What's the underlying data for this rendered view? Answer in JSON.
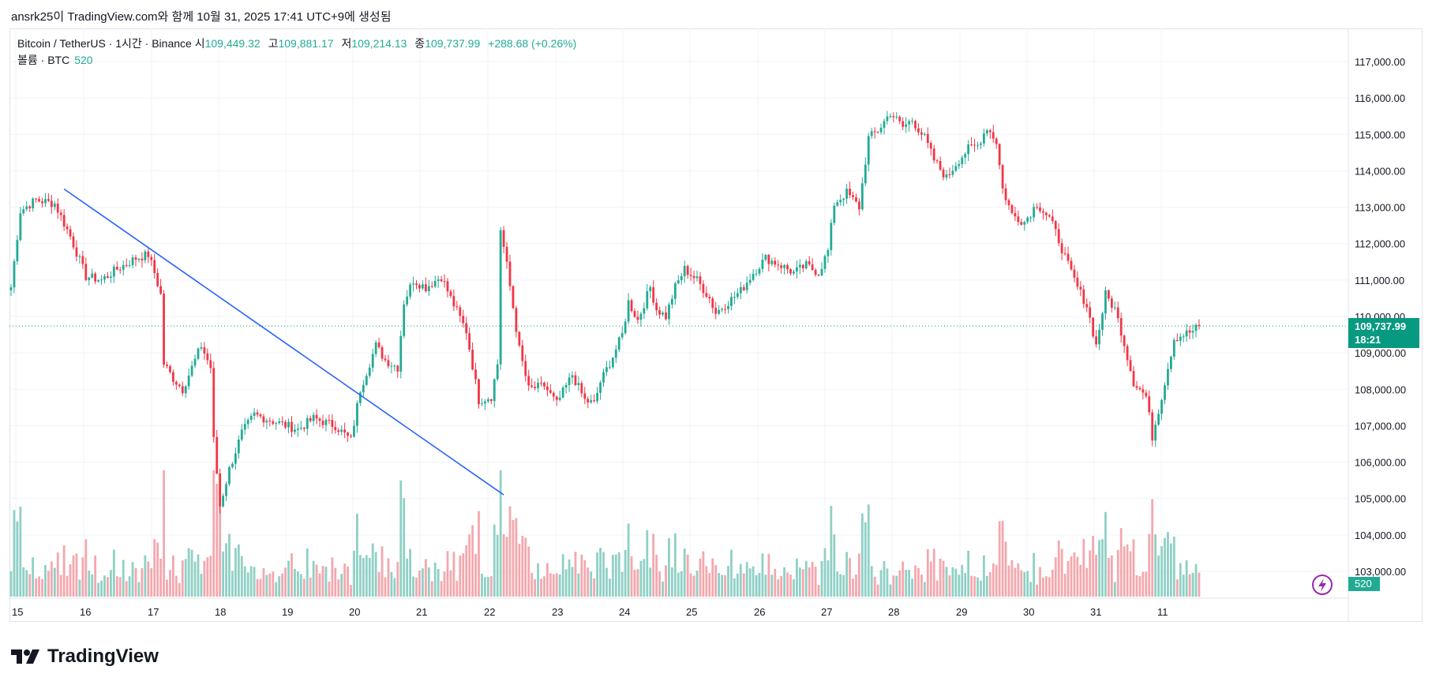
{
  "header": {
    "caption": "ansrk25이 TradingView.com와 함께 10월 31, 2025 17:41 UTC+9에 생성됨"
  },
  "legend": {
    "symbol": "Bitcoin / TetherUS · 1시간 · Binance",
    "open_label": "시",
    "open": "109,449.32",
    "high_label": "고",
    "high": "109,881.17",
    "low_label": "저",
    "low": "109,214.13",
    "close_label": "종",
    "close": "109,737.99",
    "change": "+288.68 (+0.26%)",
    "volume_label": "볼륨 · BTC",
    "volume": "520"
  },
  "price_badge": {
    "price": "109,737.99",
    "countdown": "18:21"
  },
  "volume_badge": "520",
  "footer": {
    "logo_text": "TradingView"
  },
  "colors": {
    "up": "#22ab94",
    "down": "#f23645",
    "up_volume": "#8fd0c5",
    "down_volume": "#f3a8ae",
    "trendline": "#2962ff",
    "badge": "#089981"
  },
  "chart_data": {
    "type": "candlestick",
    "symbol": "BTCUSDT",
    "interval": "1h",
    "x_tick_labels": [
      "15",
      "16",
      "17",
      "18",
      "19",
      "20",
      "21",
      "22",
      "23",
      "24",
      "25",
      "26",
      "27",
      "28",
      "29",
      "30",
      "31",
      "11"
    ],
    "y_tick_labels": [
      "103,000.00",
      "104,000.00",
      "105,000.00",
      "106,000.00",
      "107,000.00",
      "108,000.00",
      "109,000.00",
      "110,000.00",
      "111,000.00",
      "112,000.00",
      "113,000.00",
      "114,000.00",
      "115,000.00",
      "116,000.00",
      "117,000.00"
    ],
    "y_ticks": [
      103000,
      104000,
      105000,
      106000,
      107000,
      108000,
      109000,
      110000,
      111000,
      112000,
      113000,
      114000,
      115000,
      116000,
      117000
    ],
    "ylim": [
      102300,
      117800
    ],
    "last_price": 109737.99,
    "price_path_anchors": [
      [
        0,
        110800
      ],
      [
        3,
        112900
      ],
      [
        8,
        113200
      ],
      [
        14,
        113100
      ],
      [
        19,
        112200
      ],
      [
        24,
        111100
      ],
      [
        29,
        111000
      ],
      [
        34,
        111300
      ],
      [
        40,
        111600
      ],
      [
        44,
        111700
      ],
      [
        46,
        111200
      ],
      [
        48,
        110600
      ],
      [
        49,
        108700
      ],
      [
        52,
        108300
      ],
      [
        55,
        108000
      ],
      [
        58,
        108600
      ],
      [
        61,
        109200
      ],
      [
        64,
        108600
      ],
      [
        65,
        106600
      ],
      [
        67,
        104800
      ],
      [
        70,
        105800
      ],
      [
        74,
        106800
      ],
      [
        78,
        107300
      ],
      [
        85,
        107100
      ],
      [
        92,
        106900
      ],
      [
        97,
        107200
      ],
      [
        104,
        107000
      ],
      [
        109,
        106600
      ],
      [
        112,
        108000
      ],
      [
        117,
        109200
      ],
      [
        120,
        108800
      ],
      [
        124,
        108600
      ],
      [
        126,
        110400
      ],
      [
        129,
        111000
      ],
      [
        133,
        110800
      ],
      [
        138,
        111100
      ],
      [
        141,
        110500
      ],
      [
        146,
        109600
      ],
      [
        150,
        107700
      ],
      [
        154,
        107800
      ],
      [
        156,
        108700
      ],
      [
        157,
        112400
      ],
      [
        159,
        111400
      ],
      [
        163,
        109100
      ],
      [
        166,
        108000
      ],
      [
        171,
        108100
      ],
      [
        175,
        107600
      ],
      [
        180,
        108400
      ],
      [
        184,
        107700
      ],
      [
        187,
        107600
      ],
      [
        189,
        108200
      ],
      [
        193,
        108900
      ],
      [
        196,
        109500
      ],
      [
        198,
        110400
      ],
      [
        201,
        109900
      ],
      [
        205,
        110800
      ],
      [
        207,
        110200
      ],
      [
        210,
        110000
      ],
      [
        213,
        110800
      ],
      [
        216,
        111300
      ],
      [
        220,
        111000
      ],
      [
        224,
        110500
      ],
      [
        226,
        110100
      ],
      [
        230,
        110400
      ],
      [
        234,
        110700
      ],
      [
        238,
        111200
      ],
      [
        242,
        111600
      ],
      [
        247,
        111400
      ],
      [
        251,
        111200
      ],
      [
        255,
        111400
      ],
      [
        259,
        111200
      ],
      [
        262,
        111800
      ],
      [
        264,
        113100
      ],
      [
        268,
        113400
      ],
      [
        272,
        113000
      ],
      [
        275,
        114900
      ],
      [
        278,
        115100
      ],
      [
        282,
        115600
      ],
      [
        286,
        115200
      ],
      [
        289,
        115400
      ],
      [
        293,
        114900
      ],
      [
        296,
        114300
      ],
      [
        300,
        113800
      ],
      [
        303,
        114200
      ],
      [
        307,
        114600
      ],
      [
        310,
        114700
      ],
      [
        313,
        115200
      ],
      [
        316,
        114800
      ],
      [
        318,
        113500
      ],
      [
        321,
        112800
      ],
      [
        325,
        112600
      ],
      [
        329,
        113100
      ],
      [
        333,
        112700
      ],
      [
        336,
        112100
      ],
      [
        339,
        111400
      ],
      [
        342,
        110800
      ],
      [
        345,
        110300
      ],
      [
        348,
        109200
      ],
      [
        351,
        110600
      ],
      [
        354,
        110200
      ],
      [
        356,
        109600
      ],
      [
        360,
        108200
      ],
      [
        364,
        107800
      ],
      [
        366,
        106700
      ],
      [
        369,
        107800
      ],
      [
        373,
        109400
      ],
      [
        376,
        109500
      ],
      [
        379,
        109600
      ],
      [
        381,
        109738
      ]
    ],
    "trendline": {
      "start": {
        "bar": 17,
        "price": 113500
      },
      "end": {
        "bar": 158,
        "price": 105100
      }
    }
  }
}
